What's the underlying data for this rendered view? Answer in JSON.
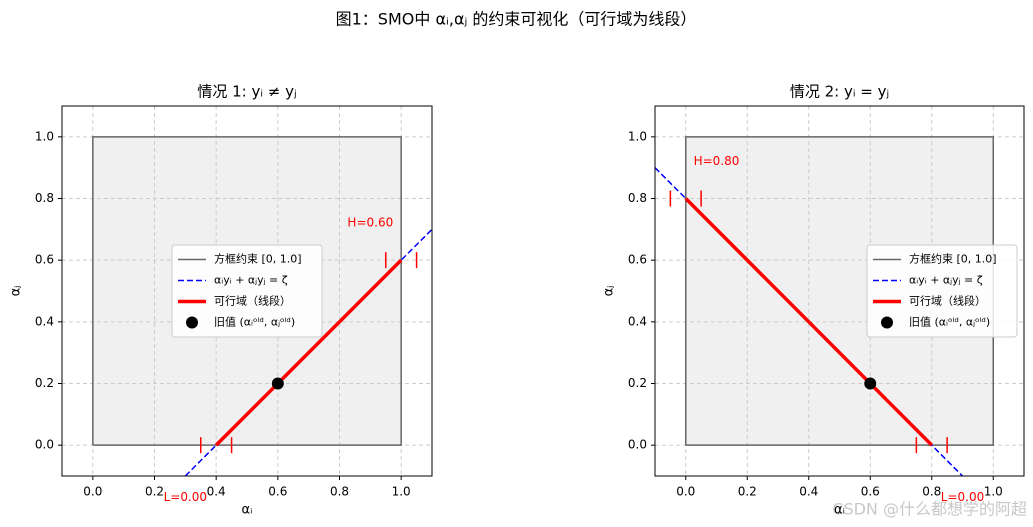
{
  "title": "图1：SMO中 αᵢ,αⱼ 的约束可视化（可行域为线段）",
  "watermark": "CSDN @什么都想学的阿超",
  "chart_data": [
    {
      "type": "line",
      "title": "情况 1: yᵢ ≠ yⱼ",
      "xlabel": "αᵢ",
      "ylabel": "αⱼ",
      "xlim": [
        -0.1,
        1.1
      ],
      "ylim": [
        -0.1,
        1.1
      ],
      "xticks": [
        {
          "value": 0,
          "label": "0.0"
        },
        0.2,
        0.4,
        0.6,
        0.8,
        {
          "value": 1,
          "label": "1.0"
        }
      ],
      "yticks": [
        {
          "value": 0,
          "label": "0.0"
        },
        0.2,
        0.4,
        0.6,
        0.8,
        {
          "value": 1,
          "label": "1.0"
        }
      ],
      "grid": true,
      "legend": "center",
      "series": [
        {
          "name": "方框约束 [0, 1.0]",
          "style": "box",
          "color": "#666666",
          "fill": "#f0f0f0",
          "x": [
            0,
            1,
            1,
            0,
            0
          ],
          "values": [
            0,
            0,
            1,
            1,
            0
          ]
        },
        {
          "name": "αᵢyᵢ + αⱼyⱼ = ζ",
          "style": "dash",
          "color": "#0000ff",
          "x": [
            0.3,
            1.1
          ],
          "values": [
            -0.1,
            0.7
          ]
        },
        {
          "name": "可行域（线段）",
          "style": "thick",
          "color": "#ff0000",
          "x": [
            0.4,
            1.0
          ],
          "values": [
            0,
            0.6
          ]
        },
        {
          "name": "旧值 (αᵢᵒˡᵈ, αⱼᵒˡᵈ)",
          "style": "dot",
          "color": "#000000",
          "x": [
            0.6
          ],
          "values": [
            0.2
          ]
        },
        {
          "style": "tick",
          "color": "#ff0000",
          "x": [
            0.35,
            0.45,
            0.95,
            1.05
          ],
          "values": [
            0,
            0,
            0.6,
            0.6
          ]
        }
      ],
      "annotations": [
        {
          "text": "L=0.00",
          "x": 0.3,
          "y": -0.17,
          "color": "#ff0000"
        },
        {
          "text": "H=0.60",
          "x": 0.9,
          "y": 0.72,
          "color": "#ff0000"
        }
      ]
    },
    {
      "type": "line",
      "title": "情况 2: yᵢ = yⱼ",
      "xlabel": "αᵢ",
      "ylabel": "αⱼ",
      "xlim": [
        -0.1,
        1.1
      ],
      "ylim": [
        -0.1,
        1.1
      ],
      "xticks": [
        {
          "value": 0,
          "label": "0.0"
        },
        0.2,
        0.4,
        0.6,
        0.8,
        {
          "value": 1,
          "label": "1.0"
        }
      ],
      "yticks": [
        {
          "value": 0,
          "label": "0.0"
        },
        0.2,
        0.4,
        0.6,
        0.8,
        {
          "value": 1,
          "label": "1.0"
        }
      ],
      "grid": true,
      "legend": "center right",
      "series": [
        {
          "name": "方框约束 [0, 1.0]",
          "style": "box",
          "color": "#666666",
          "fill": "#f0f0f0",
          "x": [
            0,
            1,
            1,
            0,
            0
          ],
          "values": [
            0,
            0,
            1,
            1,
            0
          ]
        },
        {
          "name": "αᵢyᵢ + αⱼyⱼ = ζ",
          "style": "dash",
          "color": "#0000ff",
          "x": [
            -0.1,
            0.9
          ],
          "values": [
            0.9,
            -0.1
          ]
        },
        {
          "name": "可行域（线段）",
          "style": "thick",
          "color": "#ff0000",
          "x": [
            0,
            0.8
          ],
          "values": [
            0.8,
            0
          ]
        },
        {
          "name": "旧值 (αᵢᵒˡᵈ, αⱼᵒˡᵈ)",
          "style": "dot",
          "color": "#000000",
          "x": [
            0.6
          ],
          "values": [
            0.2
          ]
        },
        {
          "style": "tick",
          "color": "#ff0000",
          "x": [
            -0.05,
            0.05,
            0.75,
            0.85
          ],
          "values": [
            0.8,
            0.8,
            0,
            0
          ]
        }
      ],
      "annotations": [
        {
          "text": "L=0.00",
          "x": 0.9,
          "y": -0.17,
          "color": "#ff0000"
        },
        {
          "text": "H=0.80",
          "x": 0.1,
          "y": 0.92,
          "color": "#ff0000"
        }
      ]
    }
  ]
}
